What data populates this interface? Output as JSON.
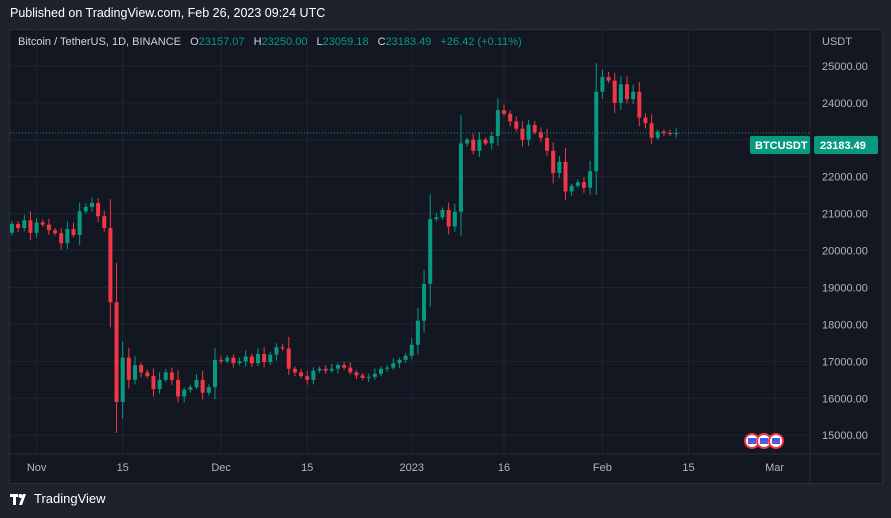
{
  "published": "Published on TradingView.com, Feb 26, 2023 09:24 UTC",
  "brand": "TradingView",
  "legend": {
    "symbol": "Bitcoin / TetherUS, 1D, BINANCE",
    "o_label": "O",
    "o": "23157.07",
    "h_label": "H",
    "h": "23250.00",
    "l_label": "L",
    "l": "23059.18",
    "c_label": "C",
    "c": "23183.49",
    "change": "+26.42 (+0.11%)"
  },
  "colors": {
    "up": "#089981",
    "down": "#f23645",
    "bg": "#131722",
    "grid": "#1f2430"
  },
  "chart_data": {
    "type": "candlestick",
    "title": "Bitcoin / TetherUS, 1D, BINANCE",
    "currency_label": "USDT",
    "price_label": {
      "symbol": "BTCUSDT",
      "value": "23183.49",
      "price": 23183.49
    },
    "ylim": [
      14600,
      25700
    ],
    "y_ticks": [
      "25000.00",
      "24000.00",
      "23000.00",
      "22000.00",
      "21000.00",
      "20000.00",
      "19000.00",
      "18000.00",
      "17000.00",
      "16000.00",
      "15000.00"
    ],
    "x_ticks": [
      {
        "label": "Nov",
        "idx": 4
      },
      {
        "label": "15",
        "idx": 18
      },
      {
        "label": "Dec",
        "idx": 34
      },
      {
        "label": "15",
        "idx": 48
      },
      {
        "label": "2023",
        "idx": 65
      },
      {
        "label": "16",
        "idx": 80
      },
      {
        "label": "Feb",
        "idx": 96
      },
      {
        "label": "15",
        "idx": 110
      },
      {
        "label": "Mar",
        "idx": 124
      }
    ],
    "closes": [
      20720,
      20610,
      20820,
      20480,
      20760,
      20700,
      20550,
      20470,
      20200,
      20580,
      20420,
      21060,
      21180,
      21290,
      20930,
      20610,
      18600,
      15900,
      17100,
      16500,
      16900,
      16700,
      16600,
      16250,
      16500,
      16700,
      16500,
      16050,
      16230,
      16300,
      16500,
      16150,
      16300,
      17040,
      17000,
      17100,
      16950,
      17000,
      17130,
      16950,
      17200,
      16980,
      17180,
      17380,
      17350,
      16800,
      16700,
      16600,
      16500,
      16750,
      16800,
      16750,
      16800,
      16900,
      16830,
      16700,
      16620,
      16550,
      16580,
      16660,
      16800,
      16830,
      16950,
      17040,
      17150,
      17450,
      18100,
      19100,
      20850,
      20900,
      21100,
      20650,
      21050,
      22900,
      23000,
      22700,
      23000,
      22900,
      23100,
      23800,
      23700,
      23500,
      23300,
      23000,
      23400,
      23200,
      23050,
      22700,
      22100,
      22400,
      21600,
      21750,
      21850,
      21700,
      22150,
      24300,
      24700,
      24600,
      24000,
      24500,
      24100,
      24300,
      23600,
      23450,
      23050,
      23220,
      23180,
      23157,
      23183
    ],
    "grid": true,
    "event_markers": 3
  }
}
